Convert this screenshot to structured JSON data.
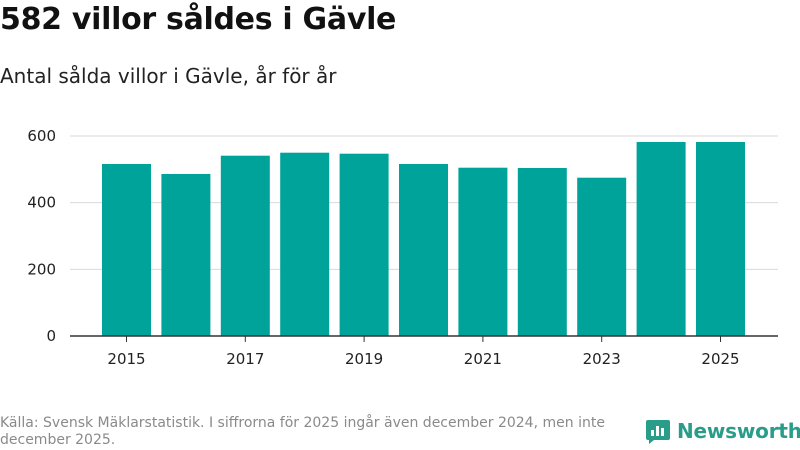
{
  "title": "582 villor såldes i Gävle",
  "subtitle": "Antal sålda villor i Gävle, år för år",
  "source": "Källa: Svensk Mäklarstatistik. I siffrorna för 2025 ingår även december 2024, men inte december 2025.",
  "logo_text": "Newsworthy",
  "colors": {
    "bar": "#00a39a",
    "grid": "#d9d9d9",
    "axis": "#333333",
    "logo": "#2a9d8a"
  },
  "chart_data": {
    "type": "bar",
    "title": "582 villor såldes i Gävle",
    "subtitle": "Antal sålda villor i Gävle, år för år",
    "xlabel": "",
    "ylabel": "",
    "categories": [
      "2015",
      "2016",
      "2017",
      "2018",
      "2019",
      "2020",
      "2021",
      "2022",
      "2023",
      "2024",
      "2025"
    ],
    "values": [
      516,
      486,
      541,
      550,
      547,
      516,
      505,
      504,
      475,
      582,
      582
    ],
    "x_tick_labels": [
      "2015",
      "2017",
      "2019",
      "2021",
      "2023",
      "2025"
    ],
    "y_ticks": [
      0,
      200,
      400,
      600
    ],
    "ylim": [
      0,
      620
    ],
    "grid": true
  }
}
